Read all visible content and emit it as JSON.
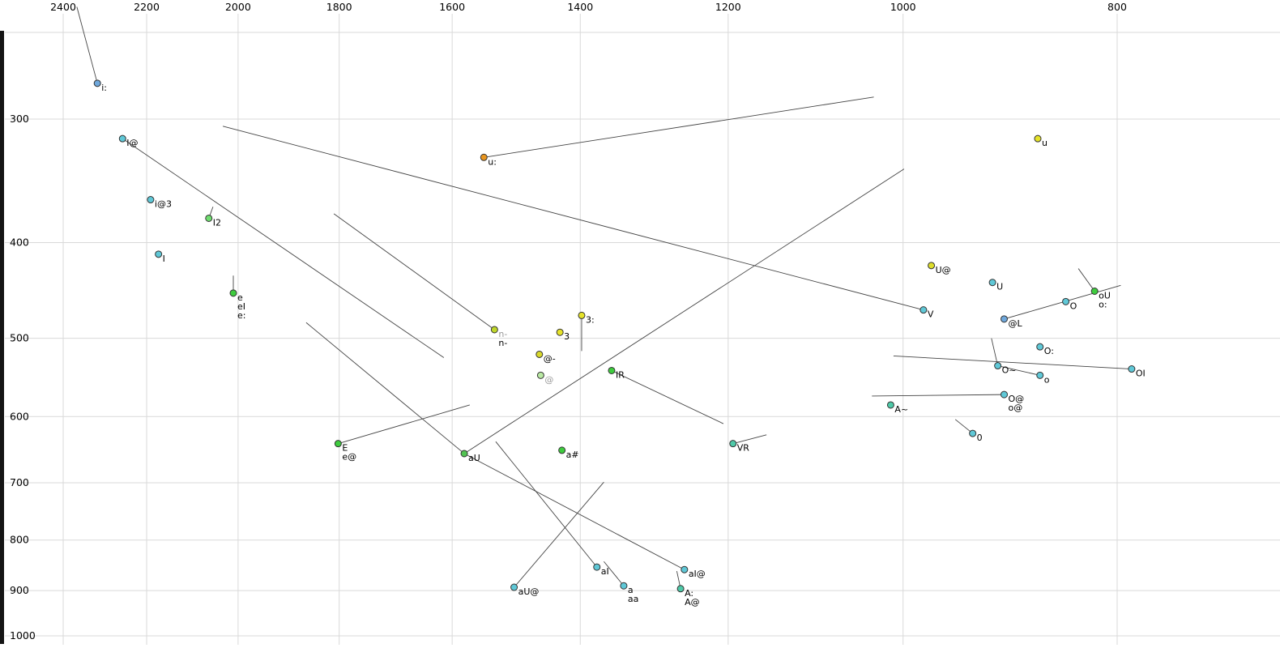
{
  "colors": {
    "background": "#ffffff",
    "grid": "#d9d9d9",
    "vector": "#444444",
    "tick_text": "#000000",
    "label_text": "#000000",
    "muted_label": "#9a9a9a",
    "point_stroke": "#333333",
    "spine": "#141414"
  },
  "chart_data": {
    "type": "scatter",
    "title": "",
    "xlabel": "",
    "ylabel": "",
    "x_axis": {
      "ticks": [
        2400,
        2200,
        2000,
        1800,
        1600,
        1400,
        1200,
        1000,
        800
      ],
      "scale": "log",
      "reversed": true,
      "range": [
        2550,
        675
      ]
    },
    "y_axis": {
      "ticks": [
        300,
        400,
        500,
        600,
        700,
        800,
        900,
        1000
      ],
      "scale": "log",
      "increases_downward": true,
      "range": [
        245,
        1030
      ]
    },
    "legend": "none",
    "grid": true,
    "points": [
      {
        "id": "i:",
        "f2": 2316,
        "f1": 276,
        "color": "#6fa8dc",
        "labels": [
          {
            "text": "i:"
          }
        ]
      },
      {
        "id": "I@",
        "f2": 2256,
        "f1": 314,
        "color": "#5fc8d7",
        "labels": [
          {
            "text": "I@"
          }
        ]
      },
      {
        "id": "i@3",
        "f2": 2191,
        "f1": 362,
        "color": "#5fc8d7",
        "labels": [
          {
            "text": "i@3"
          }
        ]
      },
      {
        "id": "I2",
        "f2": 2062,
        "f1": 378,
        "color": "#6fdd6f",
        "labels": [
          {
            "text": "I2"
          }
        ]
      },
      {
        "id": "I",
        "f2": 2173,
        "f1": 411,
        "color": "#5fc8d7",
        "labels": [
          {
            "text": "I"
          }
        ]
      },
      {
        "id": "e",
        "f2": 2010,
        "f1": 450,
        "color": "#3ecc3e",
        "labels": [
          {
            "text": "e"
          },
          {
            "text": "eI"
          },
          {
            "text": "e:"
          }
        ]
      },
      {
        "id": "u:",
        "f2": 1548,
        "f1": 328,
        "color": "#e8951f",
        "labels": [
          {
            "text": "u:"
          }
        ]
      },
      {
        "id": "n-",
        "f2": 1531,
        "f1": 490,
        "color": "#bfd62a",
        "labels": [
          {
            "text": "n-",
            "color": "#9a9a9a"
          },
          {
            "text": "n-"
          }
        ]
      },
      {
        "id": "3:",
        "f2": 1398,
        "f1": 474,
        "color": "#e6e329",
        "labels": [
          {
            "text": "3:"
          }
        ]
      },
      {
        "id": "3",
        "f2": 1430,
        "f1": 493,
        "color": "#e6e329",
        "labels": [
          {
            "text": "3"
          }
        ]
      },
      {
        "id": "@-",
        "f2": 1461,
        "f1": 519,
        "color": "#d9d92b",
        "labels": [
          {
            "text": "@-"
          }
        ]
      },
      {
        "id": "@",
        "f2": 1459,
        "f1": 545,
        "color": "#b9e9a3",
        "labels": [
          {
            "text": "@",
            "color": "#9a9a9a"
          }
        ]
      },
      {
        "id": "IR",
        "f2": 1355,
        "f1": 539,
        "color": "#3ecc3e",
        "labels": [
          {
            "text": "IR"
          }
        ]
      },
      {
        "id": "E",
        "f2": 1802,
        "f1": 639,
        "color": "#3ecc3e",
        "labels": [
          {
            "text": "E"
          },
          {
            "text": "e@"
          }
        ]
      },
      {
        "id": "aU",
        "f2": 1580,
        "f1": 654,
        "color": "#52c452",
        "labels": [
          {
            "text": "aU"
          }
        ]
      },
      {
        "id": "a#",
        "f2": 1427,
        "f1": 649,
        "color": "#3ecc3e",
        "labels": [
          {
            "text": "a#"
          }
        ]
      },
      {
        "id": "VR",
        "f2": 1194,
        "f1": 639,
        "color": "#4ec9a8",
        "labels": [
          {
            "text": "VR"
          }
        ]
      },
      {
        "id": "aI",
        "f2": 1376,
        "f1": 852,
        "color": "#5fc8d7",
        "labels": [
          {
            "text": "aI"
          }
        ]
      },
      {
        "id": "aI@",
        "f2": 1256,
        "f1": 857,
        "color": "#5fc8d7",
        "labels": [
          {
            "text": "aI@"
          }
        ]
      },
      {
        "id": "aU@",
        "f2": 1500,
        "f1": 893,
        "color": "#5fc8d7",
        "labels": [
          {
            "text": "aU@"
          }
        ]
      },
      {
        "id": "a",
        "f2": 1338,
        "f1": 890,
        "color": "#5fc8d7",
        "labels": [
          {
            "text": "a"
          },
          {
            "text": "aa"
          }
        ]
      },
      {
        "id": "A:",
        "f2": 1261,
        "f1": 896,
        "color": "#4ec9a8",
        "labels": [
          {
            "text": "A:"
          },
          {
            "text": "A@"
          }
        ]
      },
      {
        "id": "u",
        "f2": 869,
        "f1": 314,
        "color": "#e6e329",
        "labels": [
          {
            "text": "u"
          }
        ]
      },
      {
        "id": "U@",
        "f2": 971,
        "f1": 422,
        "color": "#dede2b",
        "labels": [
          {
            "text": "U@"
          }
        ]
      },
      {
        "id": "U",
        "f2": 911,
        "f1": 439,
        "color": "#5fc8d7",
        "labels": [
          {
            "text": "U"
          }
        ]
      },
      {
        "id": "oU",
        "f2": 819,
        "f1": 448,
        "color": "#3ecc3e",
        "labels": [
          {
            "text": "oU"
          },
          {
            "text": "o:"
          }
        ]
      },
      {
        "id": "O",
        "f2": 844,
        "f1": 459,
        "color": "#5fc8d7",
        "labels": [
          {
            "text": "O"
          }
        ]
      },
      {
        "id": "V",
        "f2": 979,
        "f1": 468,
        "color": "#5fc8d7",
        "labels": [
          {
            "text": "V"
          }
        ]
      },
      {
        "id": "@L",
        "f2": 900,
        "f1": 478,
        "color": "#6fa8dc",
        "labels": [
          {
            "text": "@L"
          }
        ]
      },
      {
        "id": "O:",
        "f2": 867,
        "f1": 510,
        "color": "#5fc8d7",
        "labels": [
          {
            "text": "O:"
          }
        ]
      },
      {
        "id": "O~",
        "f2": 906,
        "f1": 533,
        "color": "#5fc8d7",
        "labels": [
          {
            "text": "O~"
          }
        ]
      },
      {
        "id": "o",
        "f2": 867,
        "f1": 545,
        "color": "#5fc8d7",
        "labels": [
          {
            "text": "o"
          }
        ]
      },
      {
        "id": "OI",
        "f2": 788,
        "f1": 537,
        "color": "#5fc8d7",
        "labels": [
          {
            "text": "OI"
          }
        ]
      },
      {
        "id": "O@",
        "f2": 900,
        "f1": 570,
        "color": "#5fc8d7",
        "labels": [
          {
            "text": "O@"
          },
          {
            "text": "o@"
          }
        ]
      },
      {
        "id": "A~",
        "f2": 1013,
        "f1": 584,
        "color": "#4ec9a8",
        "labels": [
          {
            "text": "A~"
          }
        ]
      },
      {
        "id": "0",
        "f2": 930,
        "f1": 624,
        "color": "#5fc8d7",
        "labels": [
          {
            "text": "0"
          }
        ]
      }
    ],
    "vectors": [
      {
        "name": "i:-tail",
        "from": [
          2366,
          231
        ],
        "to": [
          2316,
          276
        ]
      },
      {
        "name": "I@-vector",
        "from": [
          2256,
          314
        ],
        "to": [
          1614,
          523
        ]
      },
      {
        "name": "n--vector",
        "from": [
          1810,
          374
        ],
        "to": [
          1531,
          490
        ]
      },
      {
        "name": "V-vector",
        "from": [
          2032,
          305
        ],
        "to": [
          979,
          468
        ]
      },
      {
        "name": "u:-vector",
        "from": [
          1548,
          328
        ],
        "to": [
          1031,
          285
        ]
      },
      {
        "name": "aU-inbound",
        "from": [
          1863,
          482
        ],
        "to": [
          1580,
          654
        ]
      },
      {
        "name": "E-vector",
        "from": [
          1802,
          639
        ],
        "to": [
          1571,
          584
        ]
      },
      {
        "name": "aU-vector-up",
        "from": [
          1580,
          654
        ],
        "to": [
          999,
          337
        ]
      },
      {
        "name": "aU-to-aI@",
        "from": [
          1580,
          654
        ],
        "to": [
          1256,
          857
        ]
      },
      {
        "name": "aU@-vector",
        "from": [
          1500,
          893
        ],
        "to": [
          1366,
          699
        ]
      },
      {
        "name": "aI-vector",
        "from": [
          1376,
          852
        ],
        "to": [
          1529,
          636
        ]
      },
      {
        "name": "IR-vector",
        "from": [
          1355,
          539
        ],
        "to": [
          1206,
          610
        ]
      },
      {
        "name": "VR-vector",
        "from": [
          1194,
          639
        ],
        "to": [
          1153,
          626
        ]
      },
      {
        "name": "a-vector",
        "from": [
          1338,
          890
        ],
        "to": [
          1366,
          841
        ]
      },
      {
        "name": "A:-vector",
        "from": [
          1261,
          896
        ],
        "to": [
          1266,
          860
        ]
      },
      {
        "name": "I2-tail",
        "from": [
          2062,
          378
        ],
        "to": [
          2053,
          368
        ]
      },
      {
        "name": "e-tail",
        "from": [
          2010,
          450
        ],
        "to": [
          2010,
          432
        ]
      },
      {
        "name": "3:-tail",
        "from": [
          1398,
          474
        ],
        "to": [
          1398,
          515
        ]
      },
      {
        "name": "oU-tail",
        "from": [
          819,
          448
        ],
        "to": [
          833,
          425
        ]
      },
      {
        "name": "O~-tail",
        "from": [
          906,
          533
        ],
        "to": [
          912,
          500
        ]
      },
      {
        "name": "O~-to-o",
        "from": [
          906,
          533
        ],
        "to": [
          867,
          545
        ]
      },
      {
        "name": "0-tail",
        "from": [
          930,
          624
        ],
        "to": [
          947,
          604
        ]
      },
      {
        "name": "O@-vector",
        "from": [
          900,
          570
        ],
        "to": [
          1033,
          572
        ]
      },
      {
        "name": "OI-vector",
        "from": [
          788,
          537
        ],
        "to": [
          1010,
          521
        ]
      },
      {
        "name": "@L-vector",
        "from": [
          900,
          478
        ],
        "to": [
          797,
          442
        ]
      }
    ]
  }
}
